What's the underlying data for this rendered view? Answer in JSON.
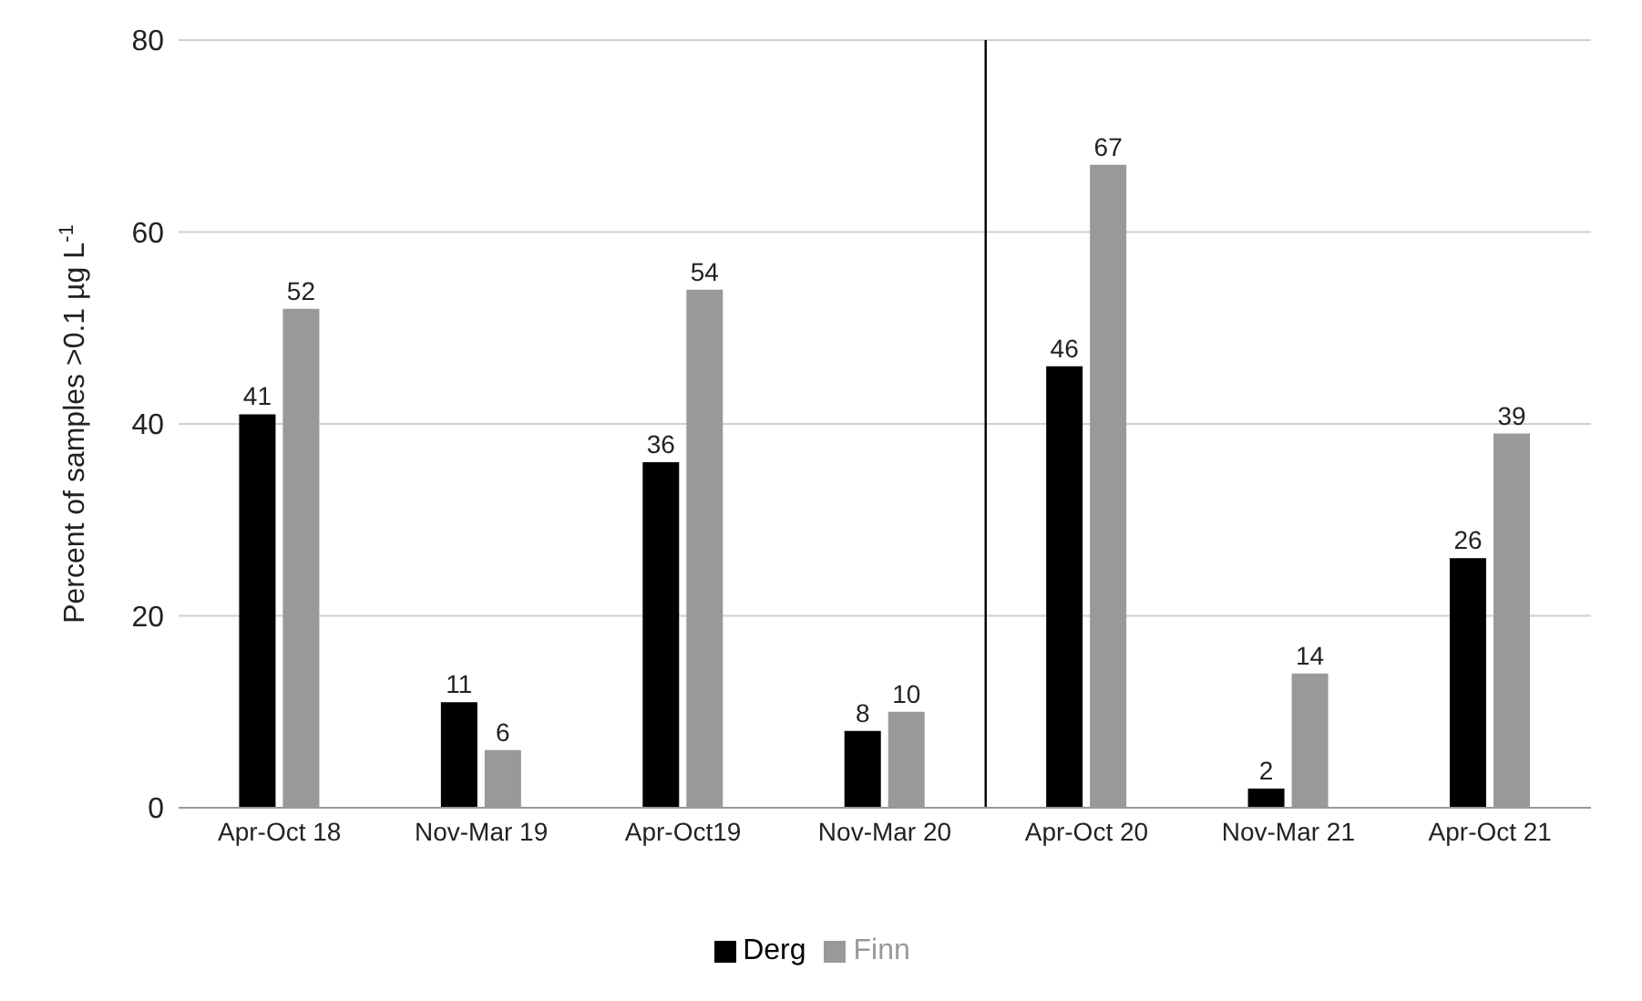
{
  "chart_data": {
    "type": "bar",
    "ylabel": "Percent of samples >0.1 µg L$^{-1}$",
    "categories": [
      "Apr-Oct 18",
      "Nov-Mar 19",
      "Apr-Oct19",
      "Nov-Mar 20",
      "Apr-Oct 20",
      "Nov-Mar 21",
      "Apr-Oct 21"
    ],
    "series": [
      {
        "name": "Derg",
        "color": "#000000",
        "values": [
          41,
          11,
          36,
          8,
          46,
          2,
          26
        ]
      },
      {
        "name": "Finn",
        "color": "#999999",
        "values": [
          52,
          6,
          54,
          10,
          67,
          14,
          39
        ]
      }
    ],
    "ylim": [
      0,
      80
    ],
    "yticks": [
      0,
      20,
      40,
      60,
      80
    ],
    "grid": "y",
    "legend": "bottom",
    "data_labels": true,
    "ref_lines": [
      {
        "axis": "x",
        "value": "Apr-Oct 20",
        "color": "#000000"
      }
    ]
  }
}
